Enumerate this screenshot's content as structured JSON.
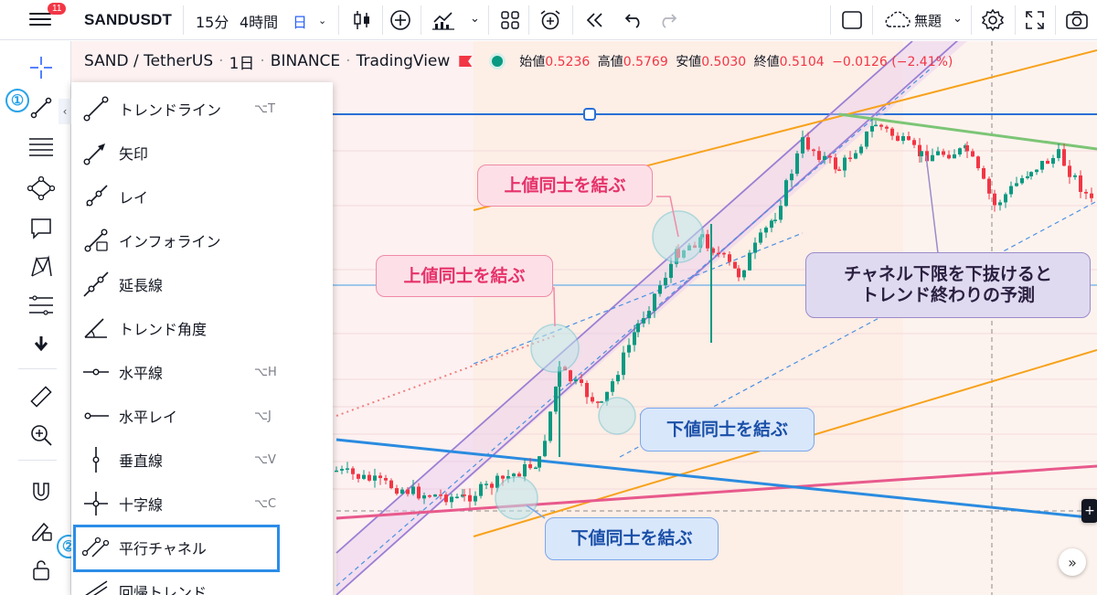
{
  "header": {
    "notification_count": "11",
    "symbol": "SANDUSDT",
    "intervals": [
      {
        "label": "15分",
        "active": false
      },
      {
        "label": "4時間",
        "active": false
      },
      {
        "label": "日",
        "active": true
      }
    ],
    "layout_name": "無題"
  },
  "legend": {
    "pair": "SAND / TetherUS",
    "interval": "1日",
    "exchange": "BINANCE",
    "source": "TradingView",
    "open_label": "始値",
    "open_value": "0.5236",
    "high_label": "高値",
    "high_value": "0.5769",
    "low_label": "安値",
    "low_value": "0.5030",
    "close_label": "終値",
    "close_value": "0.5104",
    "change": "−0.0126 (−2.41%)"
  },
  "steps": {
    "step1": "①",
    "step2": "②"
  },
  "menu": {
    "items": [
      {
        "label": "トレンドライン",
        "shortcut": "⌥T",
        "icon": "trend-line-icon"
      },
      {
        "label": "矢印",
        "shortcut": "",
        "icon": "arrow-icon"
      },
      {
        "label": "レイ",
        "shortcut": "",
        "icon": "ray-icon"
      },
      {
        "label": "インフォライン",
        "shortcut": "",
        "icon": "info-line-icon"
      },
      {
        "label": "延長線",
        "shortcut": "",
        "icon": "extended-line-icon"
      },
      {
        "label": "トレンド角度",
        "shortcut": "",
        "icon": "trend-angle-icon"
      },
      {
        "label": "水平線",
        "shortcut": "⌥H",
        "icon": "horizontal-line-icon"
      },
      {
        "label": "水平レイ",
        "shortcut": "⌥J",
        "icon": "horizontal-ray-icon"
      },
      {
        "label": "垂直線",
        "shortcut": "⌥V",
        "icon": "vertical-line-icon"
      },
      {
        "label": "十字線",
        "shortcut": "⌥C",
        "icon": "cross-line-icon"
      },
      {
        "label": "平行チャネル",
        "shortcut": "",
        "icon": "parallel-channel-icon"
      },
      {
        "label": "回帰トレンド",
        "shortcut": "",
        "icon": "regression-trend-icon"
      }
    ]
  },
  "callouts": {
    "upper_right": "上値同士を結ぶ",
    "upper_left": "上値同士を結ぶ",
    "lower_right": "下値同士を結ぶ",
    "lower_left": "下値同士を結ぶ",
    "prediction_line1": "チャネル下限を下抜けると",
    "prediction_line2": "トレンド終わりの予測"
  },
  "colors": {
    "accent": "#2962ff",
    "down": "#f23645",
    "up": "#089981",
    "channel": "#9b7fd4",
    "orange_line": "#f7a21b",
    "blue_line": "#2a8be0",
    "pink_line": "#e8598c",
    "green_line": "#7cc576"
  }
}
